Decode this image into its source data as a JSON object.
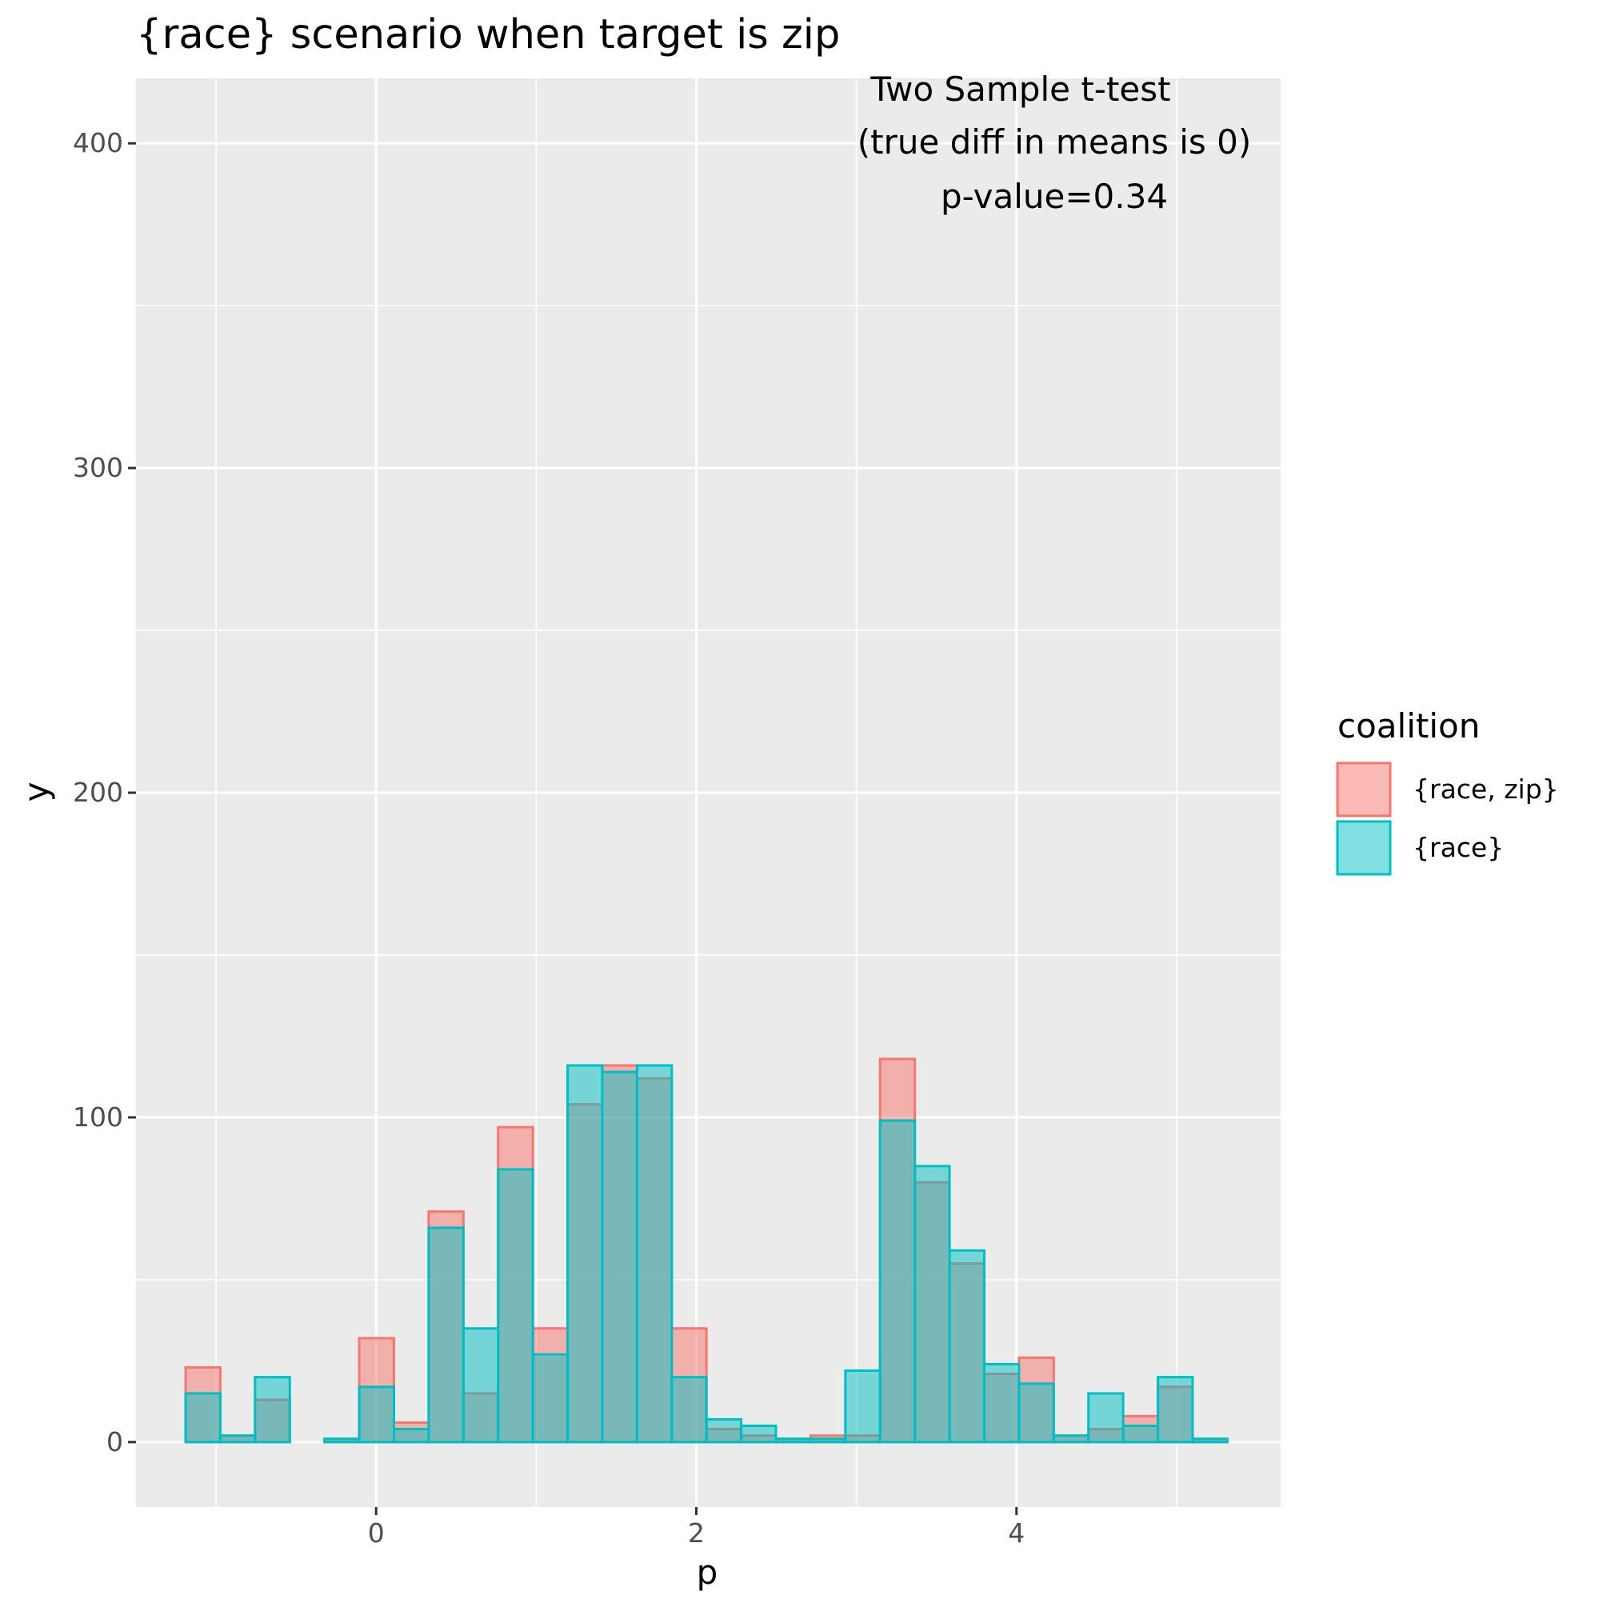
{
  "chart_data": {
    "type": "bar",
    "subtype": "overlapping histogram",
    "title": "{race} scenario when target is zip",
    "xlabel": "p",
    "ylabel": "y",
    "xlim": [
      -1.5,
      5.65
    ],
    "ylim": [
      -20,
      420
    ],
    "x_ticks": [
      0,
      2,
      4
    ],
    "x_tick_labels": [
      "0",
      "2",
      "4"
    ],
    "y_ticks": [
      0,
      100,
      200,
      300,
      400
    ],
    "y_tick_labels": [
      "0",
      "100",
      "200",
      "300",
      "400"
    ],
    "grid": true,
    "bin_width": 0.2169,
    "bin_start": -1.19,
    "x_bin_centers": [
      -1.08,
      -0.87,
      -0.65,
      -0.43,
      -0.22,
      0.0,
      0.22,
      0.43,
      0.65,
      0.87,
      1.08,
      1.3,
      1.52,
      1.74,
      1.95,
      2.17,
      2.39,
      2.6,
      2.82,
      3.04,
      3.25,
      3.47,
      3.69,
      3.91,
      4.12,
      4.34,
      4.56,
      4.77,
      4.99,
      5.21
    ],
    "series": [
      {
        "name": "{race, zip}",
        "color": "#F8766D",
        "values": [
          23,
          2,
          13,
          0,
          1,
          32,
          6,
          71,
          15,
          97,
          35,
          104,
          116,
          112,
          35,
          4,
          2,
          1,
          2,
          2,
          118,
          80,
          55,
          21,
          26,
          2,
          4,
          8,
          17,
          1
        ]
      },
      {
        "name": "{race}",
        "color": "#00BFC4",
        "values": [
          15,
          2,
          20,
          0,
          1,
          17,
          4,
          66,
          35,
          84,
          27,
          116,
          114,
          116,
          20,
          7,
          5,
          1,
          1,
          22,
          99,
          85,
          59,
          24,
          18,
          2,
          15,
          5,
          20,
          1
        ]
      }
    ],
    "annotations": [
      "Two Sample t-test",
      "(true diff in means is 0)",
      "p-value=0.34"
    ],
    "legend": {
      "title": "coalition",
      "position": "right",
      "entries": [
        "{race, zip}",
        "{race}"
      ]
    }
  }
}
